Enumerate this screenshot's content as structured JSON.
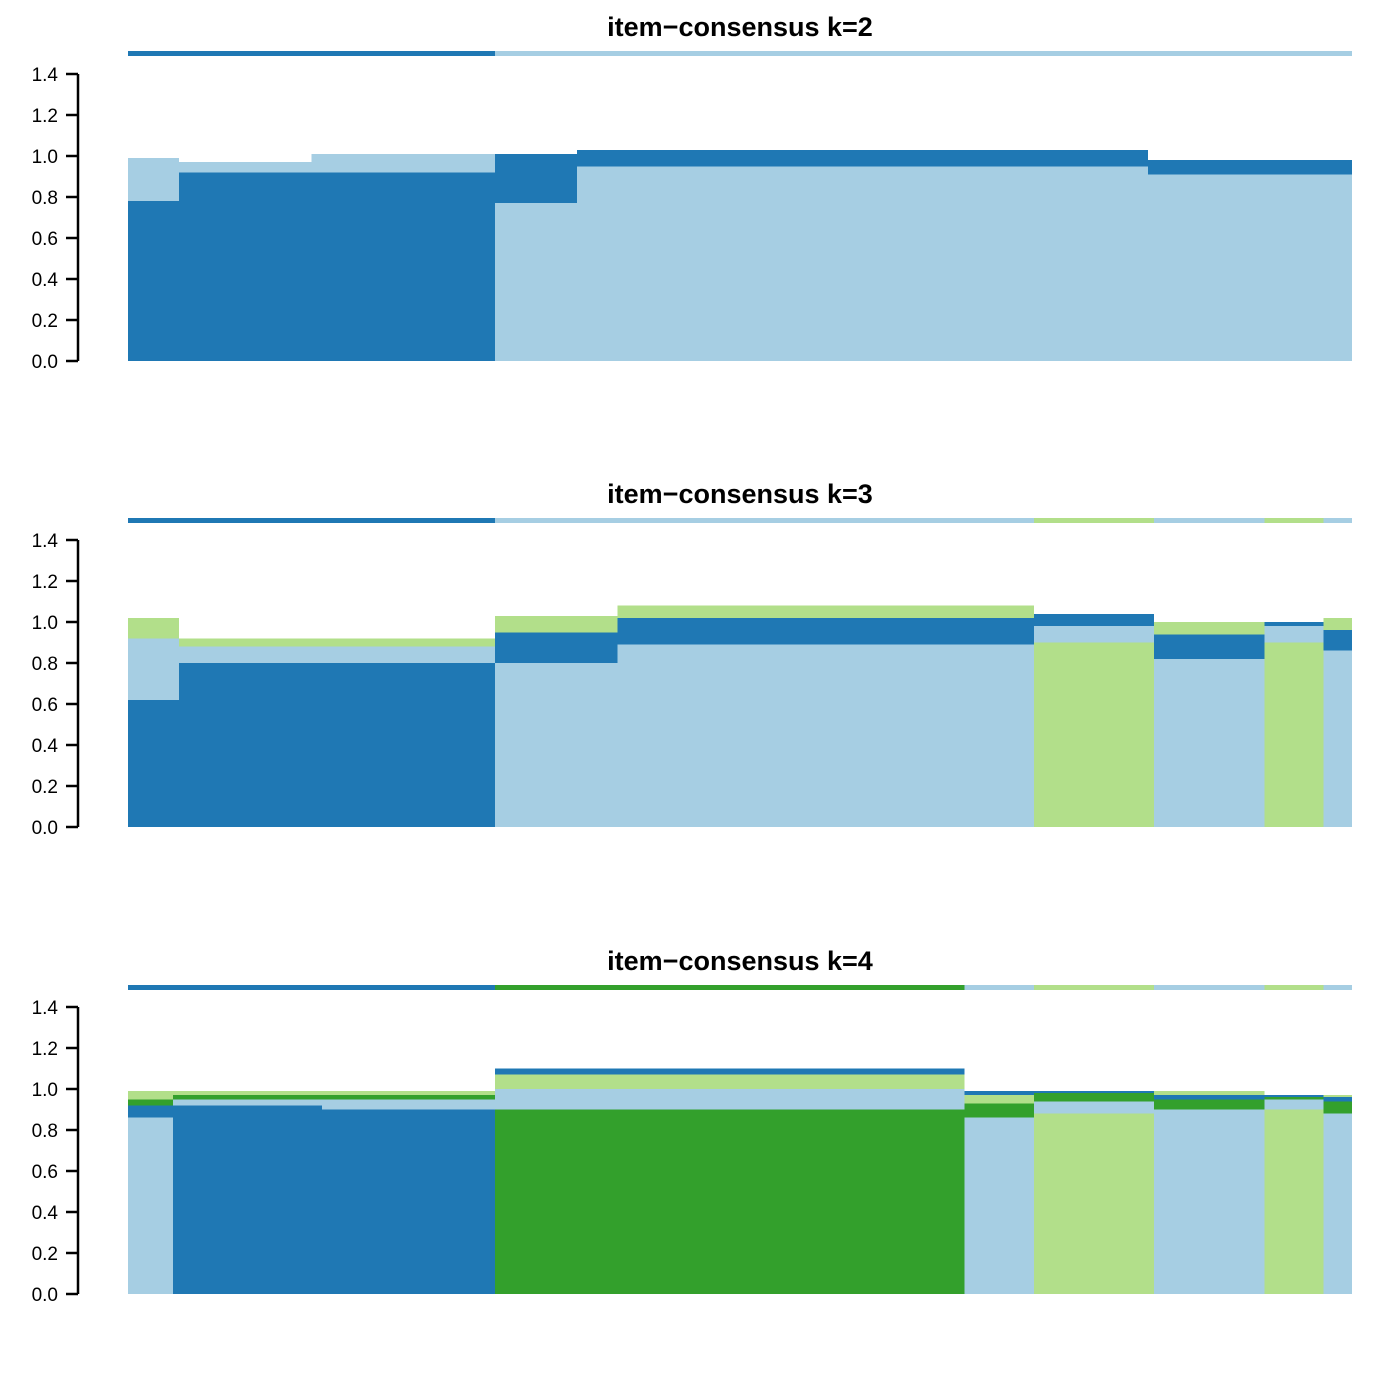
{
  "colors": {
    "cluster_1": "#1F78B4",
    "cluster_2": "#A6CEE3",
    "cluster_3": "#B2DF8A",
    "cluster_4": "#33A02C"
  },
  "chart_data": [
    {
      "type": "bar",
      "stacked": true,
      "title": "item−consensus k=2",
      "xlabel": "",
      "ylabel": "",
      "ylim": [
        0,
        1.4
      ],
      "yticks": [
        "0.0",
        "0.2",
        "0.4",
        "0.6",
        "0.8",
        "1.0",
        "1.2",
        "1.4"
      ],
      "n_items": 600,
      "cluster_colors": [
        "cluster_1",
        "cluster_2"
      ],
      "membership_track": [
        {
          "cluster": "cluster_1",
          "from": 0,
          "to": 180
        },
        {
          "cluster": "cluster_2",
          "from": 180,
          "to": 600
        }
      ],
      "segments": [
        {
          "from": 0,
          "to": 25,
          "stack": [
            {
              "cluster": "cluster_1",
              "value": 0.78
            },
            {
              "cluster": "cluster_2",
              "value": 0.21
            }
          ]
        },
        {
          "from": 25,
          "to": 90,
          "stack": [
            {
              "cluster": "cluster_1",
              "value": 0.92
            },
            {
              "cluster": "cluster_2",
              "value": 0.05
            }
          ]
        },
        {
          "from": 90,
          "to": 180,
          "stack": [
            {
              "cluster": "cluster_1",
              "value": 0.92
            },
            {
              "cluster": "cluster_2",
              "value": 0.09
            }
          ]
        },
        {
          "from": 180,
          "to": 220,
          "stack": [
            {
              "cluster": "cluster_2",
              "value": 0.77
            },
            {
              "cluster": "cluster_1",
              "value": 0.24
            }
          ]
        },
        {
          "from": 220,
          "to": 500,
          "stack": [
            {
              "cluster": "cluster_2",
              "value": 0.95
            },
            {
              "cluster": "cluster_1",
              "value": 0.08
            }
          ]
        },
        {
          "from": 500,
          "to": 600,
          "stack": [
            {
              "cluster": "cluster_2",
              "value": 0.91
            },
            {
              "cluster": "cluster_1",
              "value": 0.07
            }
          ]
        }
      ]
    },
    {
      "type": "bar",
      "stacked": true,
      "title": "item−consensus k=3",
      "xlabel": "",
      "ylabel": "",
      "ylim": [
        0,
        1.4
      ],
      "yticks": [
        "0.0",
        "0.2",
        "0.4",
        "0.6",
        "0.8",
        "1.0",
        "1.2",
        "1.4"
      ],
      "n_items": 600,
      "cluster_colors": [
        "cluster_1",
        "cluster_2",
        "cluster_3"
      ],
      "membership_track": [
        {
          "cluster": "cluster_1",
          "from": 0,
          "to": 180
        },
        {
          "cluster": "cluster_2",
          "from": 180,
          "to": 444
        },
        {
          "cluster": "cluster_3",
          "from": 444,
          "to": 503
        },
        {
          "cluster": "cluster_2",
          "from": 503,
          "to": 557
        },
        {
          "cluster": "cluster_3",
          "from": 557,
          "to": 586
        },
        {
          "cluster": "cluster_2",
          "from": 586,
          "to": 600
        }
      ],
      "segments": [
        {
          "from": 0,
          "to": 25,
          "stack": [
            {
              "cluster": "cluster_1",
              "value": 0.62
            },
            {
              "cluster": "cluster_2",
              "value": 0.3
            },
            {
              "cluster": "cluster_3",
              "value": 0.1
            }
          ]
        },
        {
          "from": 25,
          "to": 180,
          "stack": [
            {
              "cluster": "cluster_1",
              "value": 0.8
            },
            {
              "cluster": "cluster_2",
              "value": 0.08
            },
            {
              "cluster": "cluster_3",
              "value": 0.04
            }
          ]
        },
        {
          "from": 180,
          "to": 240,
          "stack": [
            {
              "cluster": "cluster_2",
              "value": 0.8
            },
            {
              "cluster": "cluster_1",
              "value": 0.15
            },
            {
              "cluster": "cluster_3",
              "value": 0.08
            }
          ]
        },
        {
          "from": 240,
          "to": 444,
          "stack": [
            {
              "cluster": "cluster_2",
              "value": 0.89
            },
            {
              "cluster": "cluster_1",
              "value": 0.13
            },
            {
              "cluster": "cluster_3",
              "value": 0.06
            }
          ]
        },
        {
          "from": 444,
          "to": 503,
          "stack": [
            {
              "cluster": "cluster_3",
              "value": 0.9
            },
            {
              "cluster": "cluster_2",
              "value": 0.08
            },
            {
              "cluster": "cluster_1",
              "value": 0.06
            }
          ]
        },
        {
          "from": 503,
          "to": 557,
          "stack": [
            {
              "cluster": "cluster_2",
              "value": 0.82
            },
            {
              "cluster": "cluster_1",
              "value": 0.12
            },
            {
              "cluster": "cluster_3",
              "value": 0.06
            }
          ]
        },
        {
          "from": 557,
          "to": 586,
          "stack": [
            {
              "cluster": "cluster_3",
              "value": 0.9
            },
            {
              "cluster": "cluster_2",
              "value": 0.08
            },
            {
              "cluster": "cluster_1",
              "value": 0.02
            }
          ]
        },
        {
          "from": 586,
          "to": 600,
          "stack": [
            {
              "cluster": "cluster_2",
              "value": 0.86
            },
            {
              "cluster": "cluster_1",
              "value": 0.1
            },
            {
              "cluster": "cluster_3",
              "value": 0.06
            }
          ]
        }
      ]
    },
    {
      "type": "bar",
      "stacked": true,
      "title": "item−consensus k=4",
      "xlabel": "",
      "ylabel": "",
      "ylim": [
        0,
        1.4
      ],
      "yticks": [
        "0.0",
        "0.2",
        "0.4",
        "0.6",
        "0.8",
        "1.0",
        "1.2",
        "1.4"
      ],
      "n_items": 600,
      "cluster_colors": [
        "cluster_1",
        "cluster_2",
        "cluster_3",
        "cluster_4"
      ],
      "membership_track": [
        {
          "cluster": "cluster_1",
          "from": 0,
          "to": 180
        },
        {
          "cluster": "cluster_4",
          "from": 180,
          "to": 410
        },
        {
          "cluster": "cluster_2",
          "from": 410,
          "to": 444
        },
        {
          "cluster": "cluster_3",
          "from": 444,
          "to": 503
        },
        {
          "cluster": "cluster_2",
          "from": 503,
          "to": 557
        },
        {
          "cluster": "cluster_3",
          "from": 557,
          "to": 586
        },
        {
          "cluster": "cluster_2",
          "from": 586,
          "to": 600
        }
      ],
      "segments": [
        {
          "from": 0,
          "to": 22,
          "stack": [
            {
              "cluster": "cluster_2",
              "value": 0.86
            },
            {
              "cluster": "cluster_1",
              "value": 0.06
            },
            {
              "cluster": "cluster_4",
              "value": 0.03
            },
            {
              "cluster": "cluster_3",
              "value": 0.04
            }
          ]
        },
        {
          "from": 22,
          "to": 95,
          "stack": [
            {
              "cluster": "cluster_1",
              "value": 0.92
            },
            {
              "cluster": "cluster_2",
              "value": 0.03
            },
            {
              "cluster": "cluster_4",
              "value": 0.02
            },
            {
              "cluster": "cluster_3",
              "value": 0.02
            }
          ]
        },
        {
          "from": 95,
          "to": 180,
          "stack": [
            {
              "cluster": "cluster_1",
              "value": 0.9
            },
            {
              "cluster": "cluster_2",
              "value": 0.05
            },
            {
              "cluster": "cluster_4",
              "value": 0.02
            },
            {
              "cluster": "cluster_3",
              "value": 0.02
            }
          ]
        },
        {
          "from": 180,
          "to": 410,
          "stack": [
            {
              "cluster": "cluster_4",
              "value": 0.9
            },
            {
              "cluster": "cluster_2",
              "value": 0.1
            },
            {
              "cluster": "cluster_3",
              "value": 0.07
            },
            {
              "cluster": "cluster_1",
              "value": 0.03
            }
          ]
        },
        {
          "from": 410,
          "to": 444,
          "stack": [
            {
              "cluster": "cluster_2",
              "value": 0.86
            },
            {
              "cluster": "cluster_4",
              "value": 0.07
            },
            {
              "cluster": "cluster_3",
              "value": 0.04
            },
            {
              "cluster": "cluster_1",
              "value": 0.02
            }
          ]
        },
        {
          "from": 444,
          "to": 503,
          "stack": [
            {
              "cluster": "cluster_3",
              "value": 0.88
            },
            {
              "cluster": "cluster_2",
              "value": 0.06
            },
            {
              "cluster": "cluster_4",
              "value": 0.04
            },
            {
              "cluster": "cluster_1",
              "value": 0.01
            }
          ]
        },
        {
          "from": 503,
          "to": 557,
          "stack": [
            {
              "cluster": "cluster_2",
              "value": 0.9
            },
            {
              "cluster": "cluster_4",
              "value": 0.05
            },
            {
              "cluster": "cluster_1",
              "value": 0.02
            },
            {
              "cluster": "cluster_3",
              "value": 0.02
            }
          ]
        },
        {
          "from": 557,
          "to": 586,
          "stack": [
            {
              "cluster": "cluster_3",
              "value": 0.9
            },
            {
              "cluster": "cluster_2",
              "value": 0.05
            },
            {
              "cluster": "cluster_4",
              "value": 0.01
            },
            {
              "cluster": "cluster_1",
              "value": 0.01
            }
          ]
        },
        {
          "from": 586,
          "to": 600,
          "stack": [
            {
              "cluster": "cluster_2",
              "value": 0.88
            },
            {
              "cluster": "cluster_4",
              "value": 0.06
            },
            {
              "cluster": "cluster_1",
              "value": 0.02
            },
            {
              "cluster": "cluster_3",
              "value": 0.01
            }
          ]
        }
      ]
    }
  ]
}
